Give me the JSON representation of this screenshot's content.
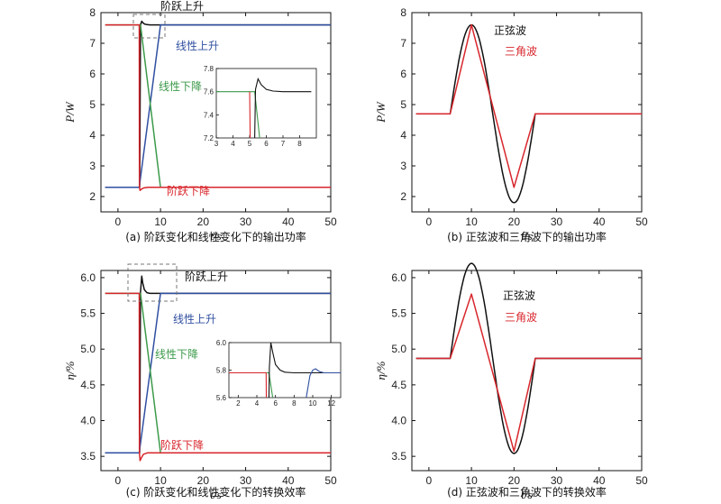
{
  "colors": {
    "black": "#111111",
    "blue": "#2f4fa0",
    "red": "#d8262c",
    "green": "#3c9a4a",
    "dashed": "#777777"
  },
  "chart_data": [
    {
      "id": "a",
      "type": "line",
      "caption": "(a) 阶跃变化和线性变化下的输出功率",
      "xlabel": "t/s",
      "ylabel": "P/W",
      "xlim": [
        -4,
        50
      ],
      "ylim": [
        1.5,
        8
      ],
      "xticks": [
        0,
        10,
        20,
        30,
        40,
        50
      ],
      "yticks": [
        2,
        3,
        4,
        5,
        6,
        7,
        8
      ],
      "series": [
        {
          "name": "阶跃上升",
          "color": "black",
          "x": [
            -3,
            5,
            5.1,
            5.3,
            5.6,
            5.8,
            6.2,
            6.8,
            7.5,
            9,
            50
          ],
          "y": [
            2.3,
            2.3,
            2.3,
            7.6,
            7.72,
            7.68,
            7.63,
            7.61,
            7.6,
            7.6,
            7.6
          ]
        },
        {
          "name": "线性上升",
          "color": "blue",
          "x": [
            -3,
            5,
            10,
            50
          ],
          "y": [
            2.3,
            2.3,
            7.6,
            7.6
          ]
        },
        {
          "name": "线性下降",
          "color": "green",
          "x": [
            -3,
            5.3,
            10,
            50
          ],
          "y": [
            7.6,
            7.6,
            2.3,
            2.3
          ]
        },
        {
          "name": "阶跃下降",
          "color": "red",
          "x": [
            -3,
            5,
            5.05,
            5.2,
            5.5,
            6,
            7,
            50
          ],
          "y": [
            7.6,
            7.6,
            2.3,
            2.2,
            2.24,
            2.28,
            2.3,
            2.3
          ]
        }
      ],
      "annotations": [
        {
          "text": "阶跃上升",
          "color": "black"
        },
        {
          "text": "线性上升",
          "color": "blue"
        },
        {
          "text": "线性下降",
          "color": "green"
        },
        {
          "text": "阶跃下降",
          "color": "red"
        }
      ],
      "inset": {
        "xlim": [
          3,
          9
        ],
        "ylim": [
          7.2,
          7.8
        ],
        "xticks": [
          3,
          4,
          5,
          6,
          7,
          8
        ],
        "yticks": [
          7.2,
          7.4,
          7.6,
          7.8
        ],
        "series": [
          {
            "color": "green",
            "x": [
              3,
              5.3,
              5.6
            ],
            "y": [
              7.6,
              7.6,
              7.2
            ]
          },
          {
            "color": "red",
            "x": [
              5,
              5,
              5.03
            ],
            "y": [
              7.6,
              7.6,
              7.2
            ]
          },
          {
            "color": "black",
            "x": [
              5.3,
              5.35,
              5.5,
              5.7,
              6,
              6.4,
              7,
              8.7
            ],
            "y": [
              7.2,
              7.62,
              7.71,
              7.66,
              7.62,
              7.605,
              7.6,
              7.6
            ]
          }
        ]
      }
    },
    {
      "id": "b",
      "type": "line",
      "caption": "(b) 正弦波和三角波下的输出功率",
      "xlabel": "t/s",
      "ylabel": "P/W",
      "xlim": [
        -4,
        50
      ],
      "ylim": [
        1.5,
        8
      ],
      "xticks": [
        0,
        10,
        20,
        30,
        40,
        50
      ],
      "yticks": [
        2,
        3,
        4,
        5,
        6,
        7,
        8
      ],
      "series": [
        {
          "name": "正弦波",
          "color": "black",
          "kind": "sine",
          "x_start": 5,
          "x_end": 25,
          "base": 4.7,
          "amp": 2.9
        },
        {
          "name": "三角波",
          "color": "red",
          "x": [
            -3,
            5,
            10,
            20,
            25,
            50
          ],
          "y": [
            4.7,
            4.7,
            7.6,
            2.3,
            4.7,
            4.7
          ]
        }
      ],
      "annotations": [
        {
          "text": "正弦波",
          "color": "black"
        },
        {
          "text": "三角波",
          "color": "red"
        }
      ]
    },
    {
      "id": "c",
      "type": "line",
      "caption": "(c) 阶跃变化和线性变化下的转换效率",
      "xlabel": "t/s",
      "ylabel": "η/%",
      "xlim": [
        -4,
        50
      ],
      "ylim": [
        3.3,
        6.1
      ],
      "xticks": [
        0,
        10,
        20,
        30,
        40,
        50
      ],
      "yticks": [
        3.5,
        4.0,
        4.5,
        5.0,
        5.5,
        6.0
      ],
      "series": [
        {
          "name": "阶跃上升",
          "color": "black",
          "x": [
            -3,
            5,
            5.1,
            5.3,
            5.6,
            5.8,
            6.2,
            6.8,
            7.5,
            9,
            50
          ],
          "y": [
            3.55,
            3.55,
            3.55,
            5.8,
            6.02,
            5.93,
            5.83,
            5.79,
            5.78,
            5.78,
            5.78
          ]
        },
        {
          "name": "线性上升",
          "color": "blue",
          "x": [
            -3,
            5,
            10,
            50
          ],
          "y": [
            3.55,
            3.55,
            5.78,
            5.78
          ]
        },
        {
          "name": "线性下降",
          "color": "green",
          "x": [
            -3,
            5.3,
            10,
            50
          ],
          "y": [
            5.78,
            5.78,
            3.55,
            3.55
          ]
        },
        {
          "name": "阶跃下降",
          "color": "red",
          "x": [
            -3,
            5,
            5.05,
            5.2,
            5.5,
            6,
            7,
            50
          ],
          "y": [
            5.78,
            5.78,
            3.55,
            3.44,
            3.48,
            3.53,
            3.55,
            3.55
          ]
        }
      ],
      "annotations": [
        {
          "text": "阶跃上升",
          "color": "black"
        },
        {
          "text": "线性上升",
          "color": "blue"
        },
        {
          "text": "线性下降",
          "color": "green"
        },
        {
          "text": "阶跃下降",
          "color": "red"
        }
      ],
      "inset": {
        "xlim": [
          1,
          13
        ],
        "ylim": [
          5.6,
          6.0
        ],
        "xticks": [
          2,
          4,
          6,
          8,
          10,
          12
        ],
        "yticks": [
          5.6,
          5.8,
          6.0
        ],
        "series": [
          {
            "color": "green",
            "x": [
              1,
              5.3,
              5.7
            ],
            "y": [
              5.78,
              5.78,
              5.6
            ]
          },
          {
            "color": "red",
            "x": [
              1,
              5,
              5.02
            ],
            "y": [
              5.78,
              5.78,
              5.6
            ]
          },
          {
            "color": "black",
            "x": [
              5.3,
              5.35,
              5.5,
              5.7,
              6,
              6.5,
              7,
              8,
              13
            ],
            "y": [
              5.6,
              5.82,
              6.0,
              5.93,
              5.84,
              5.8,
              5.785,
              5.78,
              5.78
            ]
          },
          {
            "color": "blue",
            "x": [
              9.3,
              9.7,
              10,
              10.3,
              10.7,
              11.2,
              13
            ],
            "y": [
              5.6,
              5.76,
              5.8,
              5.81,
              5.79,
              5.78,
              5.78
            ]
          }
        ]
      }
    },
    {
      "id": "d",
      "type": "line",
      "caption": "(d) 正弦波和三角波下的转换效率",
      "xlabel": "t/s",
      "ylabel": "η/%",
      "xlim": [
        -4,
        50
      ],
      "ylim": [
        3.3,
        6.1
      ],
      "xticks": [
        0,
        10,
        20,
        30,
        40,
        50
      ],
      "yticks": [
        3.5,
        4.0,
        4.5,
        5.0,
        5.5,
        6.0
      ],
      "series": [
        {
          "name": "正弦波",
          "color": "black",
          "kind": "sine",
          "x_start": 5,
          "x_end": 25,
          "base": 4.87,
          "amp": 1.33
        },
        {
          "name": "三角波",
          "color": "red",
          "x": [
            -3,
            5,
            10,
            20,
            25,
            50
          ],
          "y": [
            4.87,
            4.87,
            5.77,
            3.57,
            4.87,
            4.87
          ]
        }
      ],
      "annotations": [
        {
          "text": "正弦波",
          "color": "black"
        },
        {
          "text": "三角波",
          "color": "red"
        }
      ]
    }
  ]
}
